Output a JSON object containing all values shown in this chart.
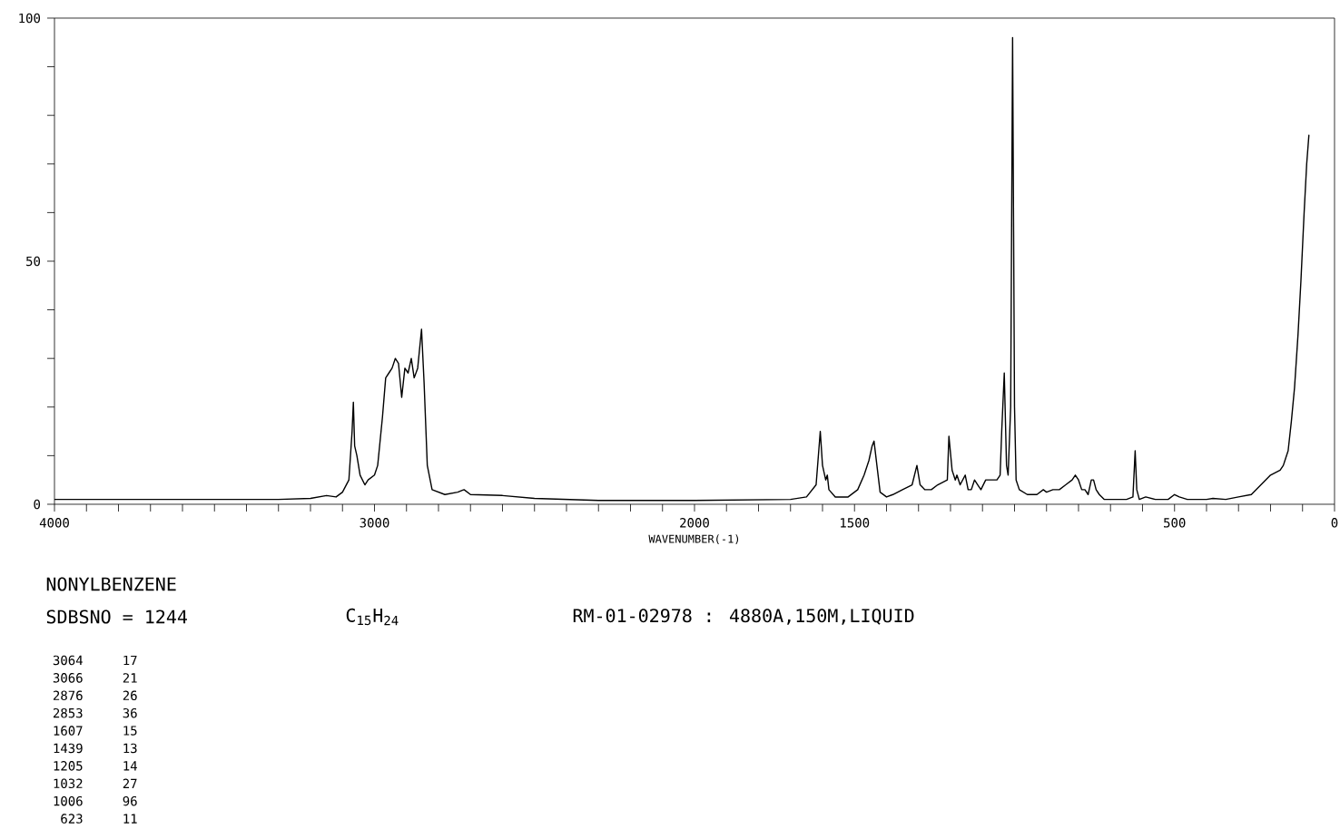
{
  "chart_data": {
    "type": "line",
    "title": "NONYLBENZENE",
    "xlabel": "WAVENUMBER(-1)",
    "color": "#000000",
    "annotations": [
      "SDBSNO = 1244",
      "C$_{15}$H$_{24}$",
      "RM-01-02978 : 4880A,150M,LIQUID",
      "3064",
      "17",
      "3066",
      "21",
      "2876",
      "26",
      "2853",
      "36",
      "1607",
      "15",
      "1439",
      "13",
      "1205",
      "14",
      "1032",
      "27",
      "1006",
      "96",
      "623",
      "11"
    ],
    "x": [
      4000,
      3300,
      3200,
      3150,
      3120,
      3100,
      3080,
      3070,
      3066,
      3062,
      3055,
      3045,
      3030,
      3020,
      3000,
      2990,
      2975,
      2965,
      2955,
      2945,
      2935,
      2925,
      2915,
      2905,
      2895,
      2885,
      2876,
      2865,
      2853,
      2845,
      2835,
      2820,
      2780,
      2740,
      2720,
      2700,
      2600,
      2500,
      2300,
      2000,
      1700,
      1650,
      1620,
      1607,
      1600,
      1590,
      1585,
      1580,
      1560,
      1520,
      1490,
      1470,
      1455,
      1445,
      1439,
      1430,
      1420,
      1400,
      1380,
      1350,
      1320,
      1305,
      1295,
      1280,
      1260,
      1240,
      1210,
      1205,
      1195,
      1185,
      1180,
      1170,
      1154,
      1145,
      1135,
      1125,
      1115,
      1105,
      1090,
      1070,
      1055,
      1045,
      1040,
      1032,
      1025,
      1020,
      1012,
      1006,
      1000,
      995,
      985,
      960,
      930,
      910,
      900,
      880,
      860,
      840,
      820,
      810,
      800,
      790,
      780,
      770,
      760,
      753,
      745,
      735,
      720,
      650,
      630,
      623,
      618,
      610,
      590,
      560,
      520,
      500,
      485,
      460,
      400,
      380,
      340,
      300,
      260,
      230,
      200,
      170,
      160,
      145,
      135,
      125,
      114,
      105,
      95,
      87,
      80
    ],
    "values": [
      1,
      1,
      1.2,
      1.8,
      1.5,
      2.5,
      5,
      15,
      21,
      12,
      10,
      6,
      4,
      5,
      6,
      8,
      18,
      26,
      27,
      28,
      30,
      29,
      22,
      28,
      27,
      30,
      26,
      28,
      36,
      25,
      8,
      3,
      2,
      2.5,
      3,
      2,
      1.8,
      1.2,
      0.8,
      0.8,
      1,
      1.5,
      4,
      15,
      8,
      5,
      6,
      3,
      1.5,
      1.5,
      3,
      6,
      9,
      12,
      13,
      8,
      2.5,
      1.5,
      2,
      3,
      4,
      8,
      4,
      3,
      3,
      4,
      5,
      14,
      7,
      5,
      6,
      4,
      6,
      3,
      3,
      5,
      4,
      3,
      5,
      5,
      5,
      6,
      15,
      27,
      8,
      6,
      20,
      96,
      20,
      5,
      3,
      2,
      2,
      3,
      2.5,
      3,
      3,
      4,
      5,
      6,
      5,
      3,
      3,
      2,
      5,
      5,
      3,
      2,
      1,
      1,
      1.5,
      11,
      3,
      1,
      1.5,
      1,
      1,
      2,
      1.5,
      1,
      1,
      1.2,
      1,
      1.5,
      2,
      4,
      6,
      7,
      8,
      11,
      17,
      24,
      35,
      46,
      60,
      70,
      76
    ],
    "xlim": [
      4000,
      0
    ],
    "xticks": [
      4000,
      {
        "value": 3900,
        "label": null
      },
      {
        "value": 3800,
        "label": null
      },
      {
        "value": 3700,
        "label": null
      },
      {
        "value": 3600,
        "label": null
      },
      {
        "value": 3500,
        "label": null
      },
      {
        "value": 3400,
        "label": null
      },
      {
        "value": 3300,
        "label": null
      },
      {
        "value": 3200,
        "label": null
      },
      {
        "value": 3100,
        "label": null
      },
      3000,
      {
        "value": 2900,
        "label": null
      },
      {
        "value": 2800,
        "label": null
      },
      {
        "value": 2700,
        "label": null
      },
      {
        "value": 2600,
        "label": null
      },
      {
        "value": 2500,
        "label": null
      },
      {
        "value": 2400,
        "label": null
      },
      {
        "value": 2300,
        "label": null
      },
      {
        "value": 2200,
        "label": null
      },
      {
        "value": 2100,
        "label": null
      },
      2000,
      {
        "value": 1900,
        "label": null
      },
      {
        "value": 1800,
        "label": null
      },
      {
        "value": 1700,
        "label": null
      },
      {
        "value": 1600,
        "label": null
      },
      1500,
      {
        "value": 1400,
        "label": null
      },
      {
        "value": 1300,
        "label": null
      },
      {
        "value": 1200,
        "label": null
      },
      {
        "value": 1100,
        "label": null
      },
      {
        "value": 1000,
        "label": null
      },
      {
        "value": 900,
        "label": null
      },
      {
        "value": 800,
        "label": null
      },
      {
        "value": 700,
        "label": null
      },
      {
        "value": 600,
        "label": null
      },
      500,
      {
        "value": 400,
        "label": null
      },
      {
        "value": 300,
        "label": null
      },
      {
        "value": 200,
        "label": null
      },
      {
        "value": 100,
        "label": null
      },
      0
    ],
    "ylim": [
      0,
      100
    ],
    "yticks": [
      0,
      {
        "value": 10,
        "label": null
      },
      {
        "value": 20,
        "label": null
      },
      {
        "value": 30,
        "label": null
      },
      {
        "value": 40,
        "label": null
      },
      50,
      {
        "value": 60,
        "label": null
      },
      {
        "value": 70,
        "label": null
      },
      {
        "value": 80,
        "label": null
      },
      {
        "value": 90,
        "label": null
      },
      100
    ],
    "grid": false,
    "line_style": "solid",
    "marker": "none"
  }
}
